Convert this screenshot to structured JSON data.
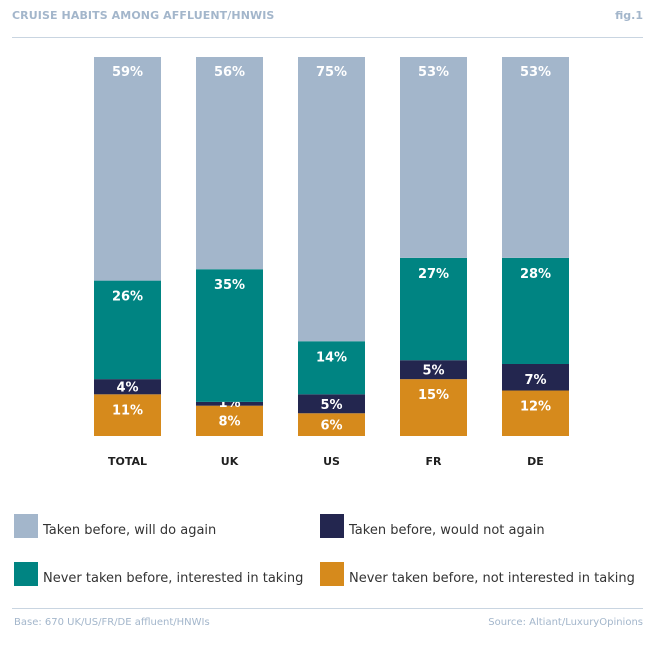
{
  "header": {
    "title": "CRUISE HABITS AMONG AFFLUENT/HNWIS",
    "fig": "fig.1"
  },
  "footer": {
    "base": "Base: 670 UK/US/FR/DE affluent/HNWIs",
    "source": "Source: Altiant/LuxuryOpinions"
  },
  "chart_data": {
    "type": "bar",
    "stacked": true,
    "title": "CRUISE HABITS AMONG AFFLUENT/HNWIS",
    "categories": [
      "TOTAL",
      "UK",
      "US",
      "FR",
      "DE"
    ],
    "series": [
      {
        "name": "Never taken before, not interested in taking",
        "color": "#d68a1c",
        "values": [
          11,
          8,
          6,
          15,
          12
        ],
        "labels": [
          "11%",
          "8%",
          "6%",
          "15%",
          "12%"
        ]
      },
      {
        "name": "Taken before, would not again",
        "color": "#23264f",
        "values": [
          4,
          1,
          5,
          5,
          7
        ],
        "labels": [
          "4%",
          "1%",
          "5%",
          "5%",
          "7%"
        ]
      },
      {
        "name": "Never taken before, interested in taking",
        "color": "#008482",
        "values": [
          26,
          35,
          14,
          27,
          28
        ],
        "labels": [
          "26%",
          "35%",
          "14%",
          "27%",
          "28%"
        ]
      },
      {
        "name": "Taken before, will do again",
        "color": "#a3b6cb",
        "values": [
          59,
          56,
          75,
          53,
          53
        ],
        "labels": [
          "59%",
          "56%",
          "75%",
          "53%",
          "53%"
        ]
      }
    ],
    "ylim": [
      0,
      100
    ],
    "xlabel": "",
    "ylabel": "",
    "grid": false,
    "legend": [
      {
        "label": "Taken before, will do again",
        "color": "#a3b6cb"
      },
      {
        "label": "Taken before, would not again",
        "color": "#23264f"
      },
      {
        "label": "Never taken before, interested in taking",
        "color": "#008482"
      },
      {
        "label": "Never taken before, not interested in taking",
        "color": "#d68a1c"
      }
    ],
    "legend_position": "bottom"
  }
}
